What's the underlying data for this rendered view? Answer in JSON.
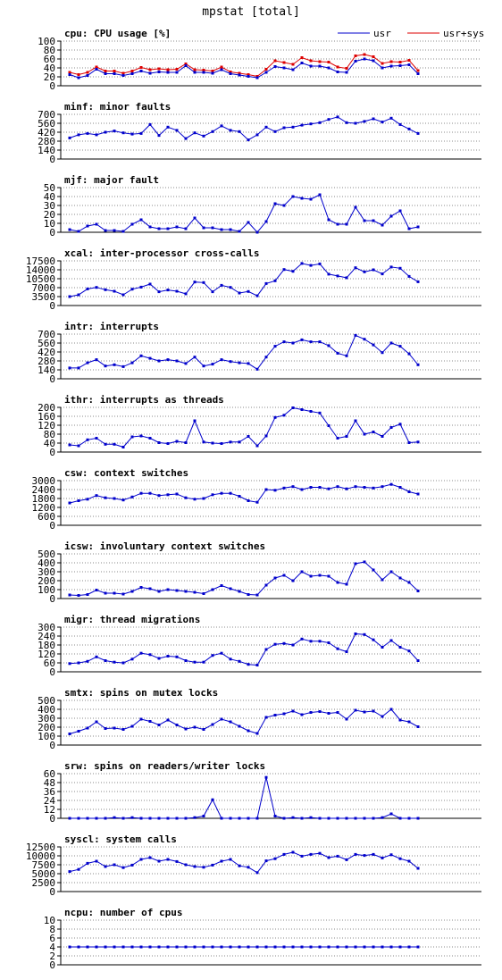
{
  "page_title": "mpstat [total]",
  "colors": {
    "usr": "#0000cc",
    "sys": "#dd0000",
    "grid": "#888888",
    "axis": "#000000"
  },
  "chart_data": [
    {
      "type": "line",
      "title": "cpu: CPU usage [%]",
      "ylim": [
        0,
        100
      ],
      "yticks": [
        0,
        20,
        40,
        60,
        80,
        100
      ],
      "grid": true,
      "legend": "top-right",
      "series": [
        {
          "name": "usr",
          "color": "#0000cc",
          "values": [
            25,
            18,
            23,
            37,
            27,
            27,
            23,
            27,
            33,
            28,
            31,
            30,
            30,
            45,
            30,
            30,
            28,
            36,
            27,
            24,
            21,
            18,
            30,
            43,
            40,
            36,
            51,
            44,
            44,
            40,
            31,
            30,
            55,
            60,
            56,
            40,
            44,
            45,
            47,
            27
          ]
        },
        {
          "name": "usr+sys",
          "color": "#dd0000",
          "values": [
            30,
            25,
            30,
            42,
            33,
            33,
            28,
            33,
            41,
            36,
            38,
            36,
            37,
            49,
            36,
            35,
            33,
            42,
            31,
            28,
            25,
            21,
            37,
            56,
            52,
            48,
            63,
            56,
            54,
            53,
            42,
            39,
            67,
            70,
            65,
            50,
            54,
            53,
            57,
            34
          ]
        }
      ]
    },
    {
      "type": "line",
      "title": "minf: minor faults",
      "ylim": [
        0,
        700
      ],
      "yticks": [
        0,
        140,
        280,
        420,
        560,
        700
      ],
      "grid": true,
      "series": [
        {
          "values": [
            330,
            380,
            400,
            380,
            420,
            440,
            410,
            390,
            400,
            540,
            370,
            500,
            450,
            320,
            410,
            360,
            430,
            520,
            450,
            430,
            300,
            380,
            500,
            430,
            490,
            500,
            530,
            550,
            570,
            620,
            660,
            570,
            560,
            590,
            630,
            580,
            640,
            540,
            470,
            400
          ]
        }
      ]
    },
    {
      "type": "line",
      "title": "mjf: major fault",
      "ylim": [
        0,
        50
      ],
      "yticks": [
        0,
        10,
        20,
        30,
        40,
        50
      ],
      "grid": true,
      "series": [
        {
          "values": [
            3,
            1,
            7,
            9,
            2,
            2,
            1,
            9,
            14,
            6,
            4,
            4,
            6,
            4,
            16,
            5,
            5,
            3,
            3,
            1,
            11,
            0,
            12,
            32,
            30,
            40,
            38,
            37,
            42,
            14,
            9,
            9,
            28,
            13,
            13,
            8,
            18,
            24,
            4,
            6
          ]
        }
      ]
    },
    {
      "type": "line",
      "title": "xcal: inter-processor cross-calls",
      "ylim": [
        0,
        17500
      ],
      "yticks": [
        0,
        3500,
        7000,
        10500,
        14000,
        17500
      ],
      "grid": true,
      "series": [
        {
          "values": [
            3500,
            4200,
            6500,
            7100,
            6200,
            5600,
            4200,
            6400,
            7200,
            8400,
            5400,
            6100,
            5600,
            4600,
            9200,
            9000,
            5400,
            7900,
            7100,
            4900,
            5500,
            3800,
            8600,
            9700,
            14100,
            13400,
            16500,
            15700,
            16300,
            12300,
            11600,
            10900,
            14800,
            13200,
            14000,
            12400,
            15100,
            14600,
            11400,
            9300
          ]
        }
      ]
    },
    {
      "type": "line",
      "title": "intr: interrupts",
      "ylim": [
        0,
        700
      ],
      "yticks": [
        0,
        140,
        280,
        420,
        560,
        700
      ],
      "grid": true,
      "series": [
        {
          "values": [
            170,
            170,
            250,
            300,
            200,
            220,
            190,
            250,
            360,
            320,
            280,
            300,
            280,
            240,
            340,
            200,
            230,
            300,
            270,
            250,
            240,
            150,
            340,
            510,
            580,
            560,
            610,
            580,
            580,
            520,
            400,
            360,
            680,
            620,
            530,
            410,
            560,
            510,
            390,
            220
          ]
        }
      ]
    },
    {
      "type": "line",
      "title": "ithr: interrupts as threads",
      "ylim": [
        0,
        200
      ],
      "yticks": [
        0,
        40,
        80,
        120,
        160,
        200
      ],
      "grid": true,
      "series": [
        {
          "values": [
            32,
            28,
            55,
            62,
            35,
            35,
            22,
            68,
            72,
            62,
            42,
            38,
            48,
            42,
            140,
            45,
            40,
            38,
            45,
            45,
            70,
            28,
            72,
            155,
            165,
            198,
            190,
            182,
            175,
            118,
            62,
            70,
            140,
            80,
            90,
            70,
            110,
            125,
            42,
            45
          ]
        }
      ]
    },
    {
      "type": "line",
      "title": "csw: context switches",
      "ylim": [
        0,
        3000
      ],
      "yticks": [
        0,
        600,
        1200,
        1800,
        2400,
        3000
      ],
      "grid": true,
      "series": [
        {
          "values": [
            1500,
            1650,
            1750,
            2000,
            1850,
            1800,
            1700,
            1900,
            2150,
            2150,
            2000,
            2050,
            2100,
            1850,
            1750,
            1800,
            2050,
            2150,
            2150,
            1950,
            1650,
            1550,
            2400,
            2350,
            2500,
            2600,
            2400,
            2550,
            2550,
            2450,
            2600,
            2450,
            2600,
            2550,
            2500,
            2600,
            2750,
            2550,
            2250,
            2100
          ]
        }
      ]
    },
    {
      "type": "line",
      "title": "icsw: involuntary context switches",
      "ylim": [
        0,
        500
      ],
      "yticks": [
        0,
        100,
        200,
        300,
        400,
        500
      ],
      "grid": true,
      "series": [
        {
          "values": [
            40,
            35,
            45,
            95,
            60,
            60,
            50,
            80,
            125,
            110,
            80,
            100,
            90,
            80,
            70,
            55,
            100,
            145,
            110,
            80,
            45,
            40,
            150,
            230,
            260,
            200,
            300,
            250,
            260,
            250,
            180,
            160,
            390,
            410,
            320,
            210,
            300,
            230,
            180,
            85
          ]
        }
      ]
    },
    {
      "type": "line",
      "title": "migr: thread migrations",
      "ylim": [
        0,
        300
      ],
      "yticks": [
        0,
        60,
        120,
        180,
        240,
        300
      ],
      "grid": true,
      "series": [
        {
          "values": [
            55,
            60,
            70,
            100,
            75,
            65,
            60,
            85,
            125,
            115,
            90,
            105,
            100,
            75,
            65,
            65,
            110,
            125,
            85,
            70,
            50,
            45,
            150,
            185,
            190,
            180,
            220,
            205,
            205,
            195,
            155,
            135,
            255,
            250,
            215,
            165,
            210,
            165,
            140,
            75
          ]
        }
      ]
    },
    {
      "type": "line",
      "title": "smtx: spins on mutex locks",
      "ylim": [
        0,
        500
      ],
      "yticks": [
        0,
        100,
        200,
        300,
        400,
        500
      ],
      "grid": true,
      "series": [
        {
          "values": [
            125,
            155,
            190,
            260,
            185,
            190,
            175,
            210,
            290,
            265,
            225,
            280,
            225,
            180,
            200,
            175,
            230,
            290,
            260,
            210,
            160,
            130,
            310,
            335,
            350,
            380,
            340,
            365,
            375,
            355,
            365,
            290,
            390,
            370,
            380,
            320,
            400,
            280,
            260,
            205
          ]
        }
      ]
    },
    {
      "type": "line",
      "title": "srw: spins on readers/writer locks",
      "ylim": [
        0,
        60
      ],
      "yticks": [
        0,
        12,
        24,
        36,
        48,
        60
      ],
      "grid": true,
      "series": [
        {
          "values": [
            0,
            0,
            0,
            0,
            0,
            1,
            0,
            1,
            0,
            0,
            0,
            0,
            0,
            0,
            1,
            3,
            25,
            0,
            0,
            0,
            0,
            0,
            55,
            3,
            0,
            1,
            0,
            1,
            0,
            0,
            0,
            0,
            0,
            0,
            0,
            1,
            6,
            0,
            0,
            0
          ]
        }
      ]
    },
    {
      "type": "line",
      "title": "syscl: system calls",
      "ylim": [
        0,
        12500
      ],
      "yticks": [
        0,
        2500,
        5000,
        7500,
        10000,
        12500
      ],
      "grid": true,
      "series": [
        {
          "values": [
            5600,
            6200,
            7900,
            8500,
            7000,
            7500,
            6700,
            7400,
            9000,
            9500,
            8500,
            9000,
            8400,
            7500,
            7000,
            6800,
            7400,
            8500,
            9000,
            7200,
            6800,
            5300,
            8600,
            9200,
            10400,
            11000,
            9900,
            10400,
            10700,
            9500,
            9900,
            8900,
            10400,
            10100,
            10400,
            9400,
            10300,
            9200,
            8500,
            6500
          ]
        }
      ]
    },
    {
      "type": "line",
      "title": "ncpu: number of cpus",
      "ylim": [
        0,
        10
      ],
      "yticks": [
        0,
        2,
        4,
        6,
        8,
        10
      ],
      "grid": true,
      "series": [
        {
          "values": [
            4,
            4,
            4,
            4,
            4,
            4,
            4,
            4,
            4,
            4,
            4,
            4,
            4,
            4,
            4,
            4,
            4,
            4,
            4,
            4,
            4,
            4,
            4,
            4,
            4,
            4,
            4,
            4,
            4,
            4,
            4,
            4,
            4,
            4,
            4,
            4,
            4,
            4,
            4,
            4
          ]
        }
      ]
    }
  ]
}
